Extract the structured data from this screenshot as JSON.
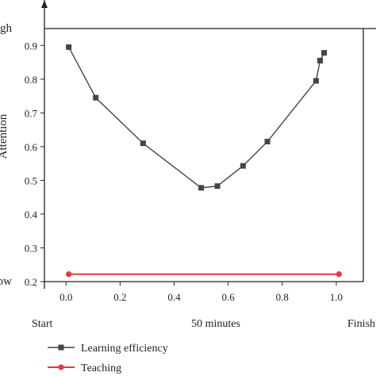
{
  "chart_data": {
    "type": "line",
    "title": "",
    "ylabel": "Attention",
    "xlim": [
      -0.08,
      1.1
    ],
    "ylim": [
      0.2,
      0.95
    ],
    "xticks": [
      "0.0",
      "0.2",
      "0.4",
      "0.6",
      "0.8",
      "1.0"
    ],
    "yticks": [
      "0.2",
      "0.3",
      "0.4",
      "0.5",
      "0.6",
      "0.7",
      "0.8",
      "0.9"
    ],
    "right_axis_labels": {
      "high": "High",
      "low": "Low"
    },
    "bottom_labels": {
      "start": "Start",
      "middle": "50 minutes",
      "finish": "Finish"
    },
    "legend_position": "bottom-left",
    "series": [
      {
        "name": "Learning efficiency",
        "color": "#444444",
        "marker": "square",
        "x": [
          0.01,
          0.11,
          0.285,
          0.5,
          0.56,
          0.655,
          0.745,
          0.925,
          0.94,
          0.955
        ],
        "y": [
          0.895,
          0.745,
          0.61,
          0.478,
          0.483,
          0.543,
          0.615,
          0.795,
          0.855,
          0.878
        ]
      },
      {
        "name": "Teaching",
        "color": "#e8383d",
        "marker": "circle",
        "x": [
          0.01,
          1.01
        ],
        "y": [
          0.222,
          0.222
        ]
      }
    ]
  }
}
